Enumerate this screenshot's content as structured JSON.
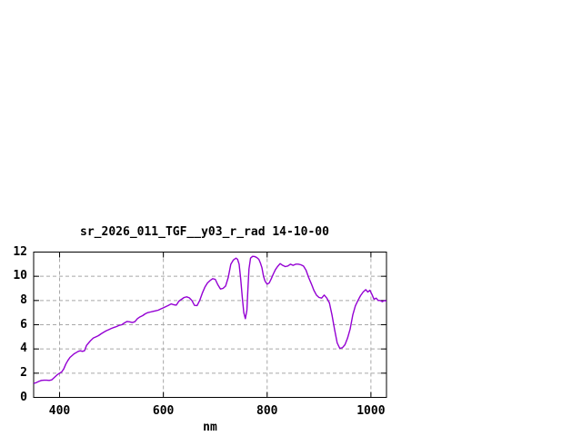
{
  "chart": {
    "title": "sr_2026_011_TGF__y03_r_rad 14-10-00",
    "xlabel": "nm"
  },
  "chart_data": {
    "type": "line",
    "title": "sr_2026_011_TGF__y03_r_rad 14-10-00",
    "xlabel": "nm",
    "ylabel": "",
    "x_range": [
      350,
      1030
    ],
    "y_range": [
      0,
      12
    ],
    "x_ticks": [
      400,
      600,
      800,
      1000
    ],
    "y_ticks": [
      0,
      2,
      4,
      6,
      8,
      10,
      12
    ],
    "grid": true,
    "legend": "none",
    "line_color": "#9400d3",
    "grid_color": "#a8a8a8",
    "axis_color": "#000000",
    "background": "#ffffff",
    "series": [
      {
        "name": "sr_2026_011_TGF__y03_r_rad",
        "x": [
          350,
          355,
          360,
          365,
          370,
          375,
          380,
          385,
          390,
          395,
          400,
          404,
          408,
          412,
          416,
          420,
          424,
          428,
          432,
          436,
          440,
          444,
          448,
          452,
          456,
          460,
          465,
          470,
          475,
          480,
          485,
          490,
          495,
          500,
          505,
          510,
          515,
          520,
          525,
          530,
          535,
          540,
          545,
          550,
          555,
          560,
          565,
          570,
          575,
          580,
          585,
          590,
          595,
          600,
          605,
          610,
          615,
          620,
          625,
          630,
          635,
          640,
          645,
          650,
          655,
          660,
          665,
          670,
          675,
          680,
          685,
          690,
          695,
          700,
          705,
          710,
          715,
          720,
          725,
          730,
          735,
          740,
          743,
          746,
          749,
          752,
          755,
          758,
          761,
          763,
          765,
          768,
          772,
          776,
          780,
          784,
          787,
          790,
          793,
          796,
          800,
          804,
          808,
          812,
          816,
          820,
          825,
          830,
          835,
          840,
          845,
          850,
          855,
          860,
          865,
          870,
          875,
          880,
          885,
          890,
          895,
          900,
          905,
          910,
          915,
          920,
          925,
          930,
          935,
          940,
          945,
          950,
          955,
          960,
          965,
          970,
          975,
          980,
          985,
          990,
          994,
          998,
          1002,
          1006,
          1010,
          1014,
          1018,
          1022,
          1026,
          1030
        ],
        "y": [
          1.15,
          1.22,
          1.32,
          1.4,
          1.42,
          1.42,
          1.4,
          1.45,
          1.65,
          1.85,
          2.0,
          2.1,
          2.35,
          2.75,
          3.05,
          3.3,
          3.45,
          3.6,
          3.7,
          3.8,
          3.85,
          3.8,
          3.85,
          4.3,
          4.5,
          4.7,
          4.9,
          5.0,
          5.1,
          5.25,
          5.38,
          5.5,
          5.6,
          5.7,
          5.78,
          5.85,
          5.95,
          6.0,
          6.15,
          6.27,
          6.24,
          6.18,
          6.25,
          6.5,
          6.65,
          6.75,
          6.9,
          7.0,
          7.05,
          7.1,
          7.15,
          7.2,
          7.3,
          7.4,
          7.5,
          7.6,
          7.72,
          7.65,
          7.62,
          7.95,
          8.1,
          8.25,
          8.3,
          8.22,
          8.0,
          7.6,
          7.58,
          8.0,
          8.6,
          9.1,
          9.45,
          9.65,
          9.8,
          9.75,
          9.3,
          8.95,
          9.0,
          9.2,
          9.9,
          11.0,
          11.35,
          11.5,
          11.4,
          11.0,
          9.8,
          8.3,
          7.0,
          6.5,
          7.2,
          9.0,
          10.6,
          11.5,
          11.65,
          11.63,
          11.55,
          11.4,
          11.1,
          10.7,
          10.0,
          9.6,
          9.35,
          9.45,
          9.8,
          10.2,
          10.55,
          10.8,
          11.05,
          10.9,
          10.8,
          10.85,
          11.0,
          10.9,
          11.0,
          11.0,
          10.95,
          10.85,
          10.5,
          9.9,
          9.4,
          8.85,
          8.45,
          8.25,
          8.2,
          8.45,
          8.2,
          7.8,
          6.8,
          5.6,
          4.5,
          4.05,
          4.1,
          4.35,
          4.9,
          5.65,
          6.8,
          7.55,
          8.0,
          8.4,
          8.7,
          8.9,
          8.7,
          8.85,
          8.5,
          8.1,
          8.2,
          8.0,
          8.0,
          7.9,
          8.0,
          7.95
        ]
      }
    ]
  }
}
